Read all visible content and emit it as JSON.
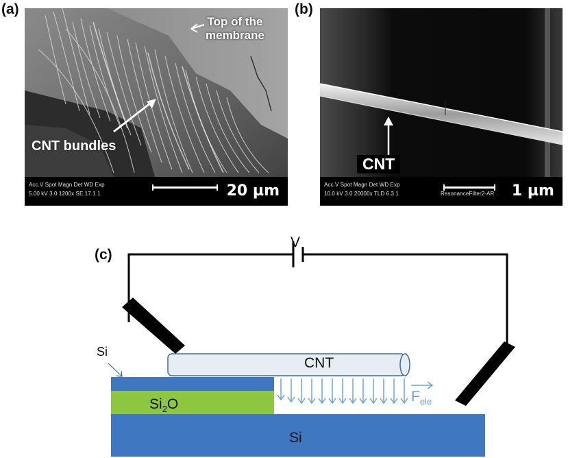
{
  "panel_a": {
    "label": "(a)",
    "annotation_top": "Top of the membrane",
    "annotation_top_line1": "Top of the",
    "annotation_top_line2": "membrane",
    "annotation_bundles": "CNT bundles",
    "meta_header": "Acc.V  Spot Magn    Det  WD  Exp",
    "meta_values": "5.00 kV 3.0  1200x   SE   17.1  1",
    "scale_text": "20 µm"
  },
  "panel_b": {
    "label": "(b)",
    "annotation_cnt": "CNT",
    "meta_header": "Acc.V  Spot Magn    Det  WD  Exp",
    "meta_values": "10.0 kV 3.0  20000x  TLD 6.3   1",
    "meta_extra": "ResonanceFilter2-AR",
    "scale_text": "1 µm"
  },
  "panel_c": {
    "label": "(c)",
    "voltage": "V",
    "si_top_label": "Si",
    "cnt_label": "CNT",
    "oxide_main": "Si",
    "oxide_sub": "2",
    "oxide_tail": "O",
    "force_main": "F",
    "force_sub": "ele",
    "substrate_label": "Si"
  },
  "colors": {
    "substrate_blue": "#3f78c0",
    "oxide_green": "#8dc63f",
    "force_arrow": "#6aa2de",
    "cnt_fill": "#e8edf4",
    "cnt_stroke": "#3a6aa8",
    "wire": "#000000"
  }
}
